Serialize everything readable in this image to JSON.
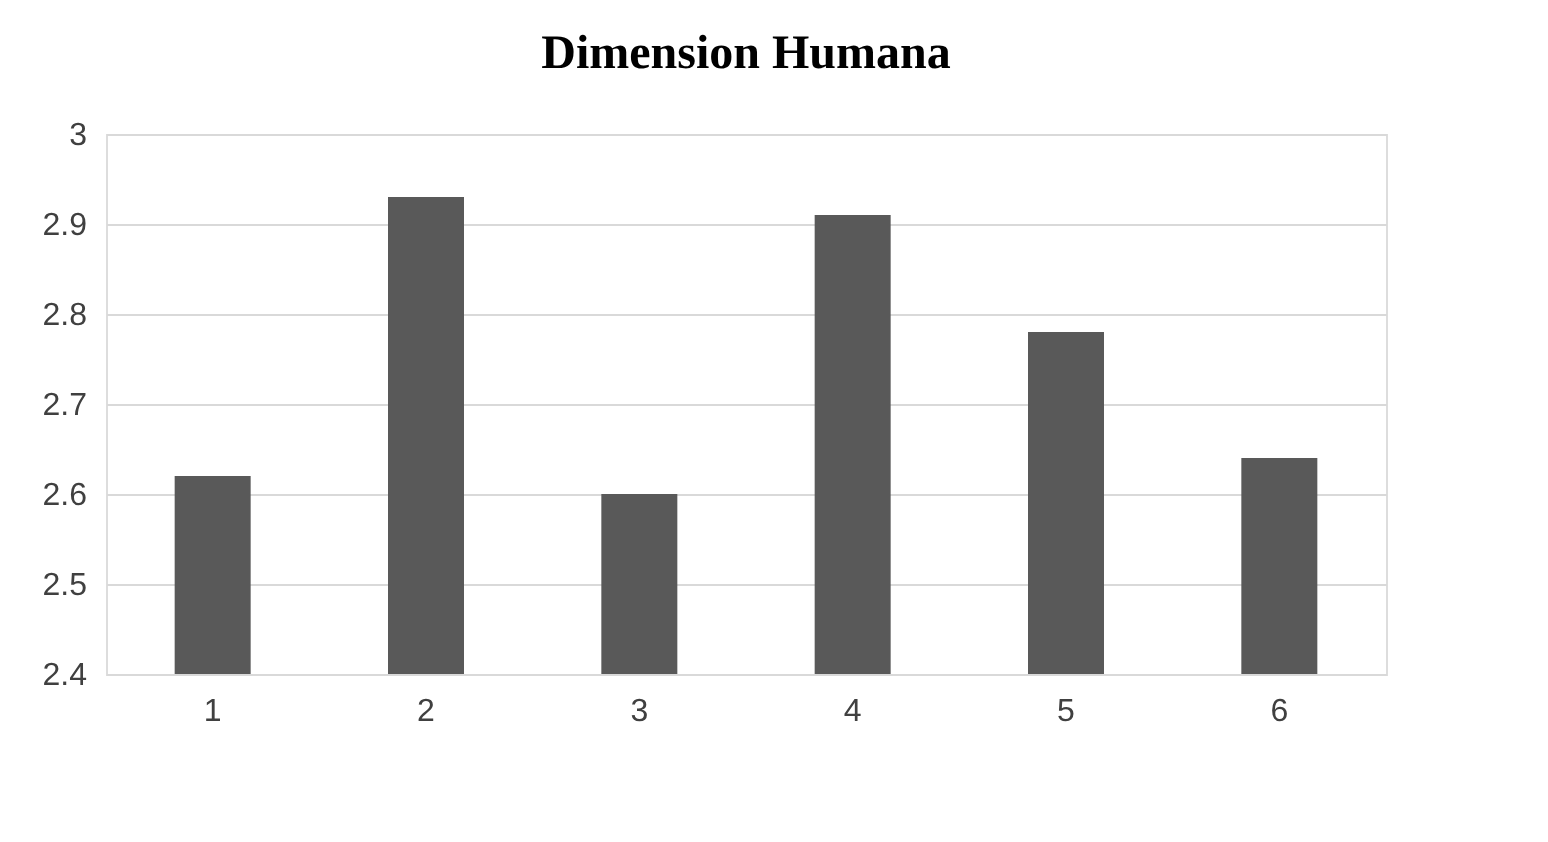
{
  "chart_data": {
    "type": "bar",
    "title": "Dimension Humana",
    "categories": [
      "1",
      "2",
      "3",
      "4",
      "5",
      "6"
    ],
    "values": [
      2.62,
      2.93,
      2.6,
      2.91,
      2.78,
      2.64
    ],
    "color": "#595959",
    "ylim": [
      2.4,
      3
    ],
    "yticks": [
      2.4,
      2.5,
      2.6,
      2.7,
      2.8,
      2.9,
      3
    ],
    "grid": "y"
  }
}
